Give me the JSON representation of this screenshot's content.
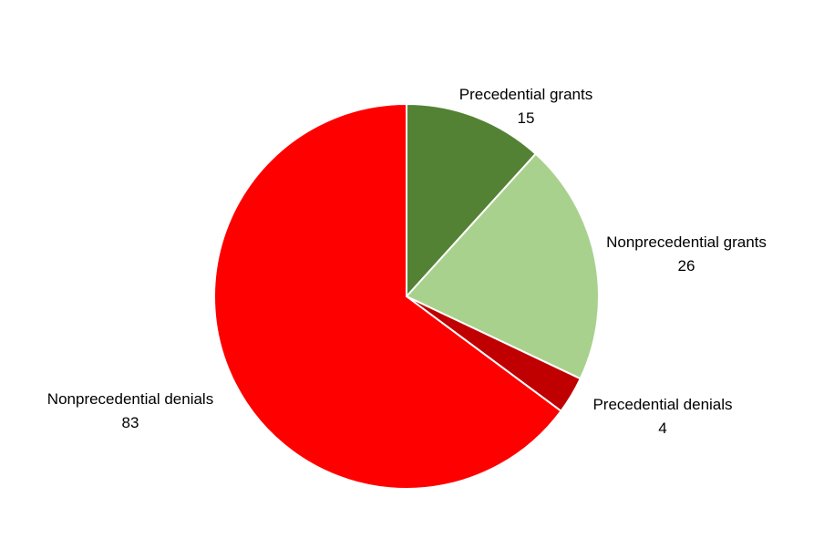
{
  "chart_data": {
    "type": "pie",
    "start_angle_deg": 0,
    "direction": "clockwise",
    "slices": [
      {
        "label": "Precedential grants",
        "value": 15,
        "color": "#548235"
      },
      {
        "label": "Nonprecedential grants",
        "value": 26,
        "color": "#A9D18E"
      },
      {
        "label": "Precedential denials",
        "value": 4,
        "color": "#C00000"
      },
      {
        "label": "Nonprecedential denials",
        "value": 83,
        "color": "#FF0000"
      }
    ]
  }
}
